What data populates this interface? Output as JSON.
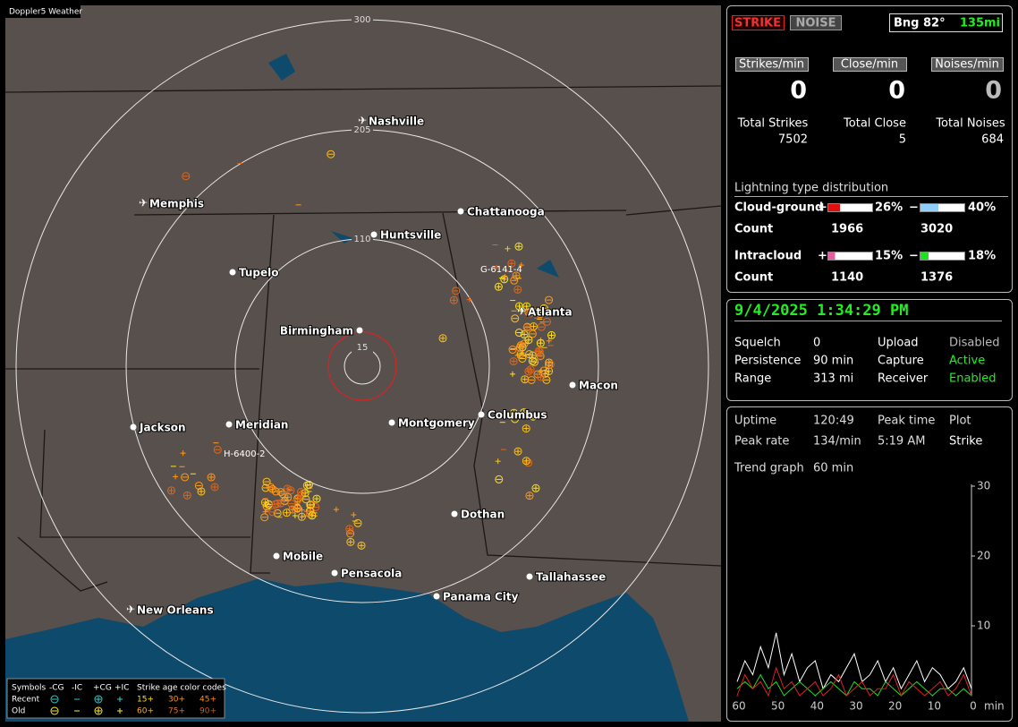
{
  "map": {
    "title": "Doppler5 Weather",
    "range_rings": [
      "300",
      "205",
      "110",
      "15"
    ],
    "cities": [
      "Nashville",
      "Memphis",
      "Chattanooga",
      "Huntsville",
      "Tupelo",
      "Atlanta",
      "Birmingham",
      "Macon",
      "Jackson",
      "Meridian",
      "Montgomery",
      "Columbus",
      "Dothan",
      "Mobile",
      "Pensacola",
      "Tallahassee",
      "Panama City",
      "New Orleans"
    ],
    "sensor_labels": [
      "G-6141-4",
      "H-6400-2"
    ],
    "legend": {
      "symbols_title": "Symbols",
      "symbols": [
        "-CG",
        "-IC",
        "+CG",
        "+IC"
      ],
      "age_title": "Strike age color codes",
      "rows": [
        "Recent",
        "Old"
      ],
      "recent_ages": [
        "15+",
        "30+",
        "45+"
      ],
      "old_ages": [
        "60+",
        "75+",
        "90+"
      ]
    }
  },
  "panel": {
    "buttons": [
      "STRIKE",
      "NOISE"
    ],
    "bearing": "Bng 82°",
    "distance": "135mi",
    "rates": [
      {
        "label": "Strikes/min",
        "value": 0
      },
      {
        "label": "Close/min",
        "value": 0
      },
      {
        "label": "Noises/min",
        "value": 0
      }
    ],
    "totals": [
      {
        "label": "Total Strikes",
        "value": 7502
      },
      {
        "label": "Total Close",
        "value": 5
      },
      {
        "label": "Total Noises",
        "value": 684
      }
    ],
    "distribution": {
      "title": "Lightning type distribution",
      "rows": [
        {
          "label": "Cloud-ground",
          "plus": "+",
          "plus_pct": {
            "value": 26,
            "label": "26%"
          },
          "minus": "−",
          "minus_pct": {
            "value": 40,
            "label": "40%"
          },
          "count_label": "Count",
          "plus_count": 1966,
          "minus_count": 3020
        },
        {
          "label": "Intracloud",
          "plus": "+",
          "plus_pct": {
            "value": 15,
            "label": "15%"
          },
          "minus": "−",
          "minus_pct": {
            "value": 18,
            "label": "18%"
          },
          "count_label": "Count",
          "plus_count": 1140,
          "minus_count": 1376
        }
      ]
    }
  },
  "status": {
    "datetime": "9/4/2025 1:34:29 PM",
    "rows": [
      [
        "Squelch",
        "0",
        "Upload",
        "Disabled"
      ],
      [
        "Persistence",
        "90 min",
        "Capture",
        "Active"
      ],
      [
        "Range",
        "313 mi",
        "Receiver",
        "Enabled"
      ]
    ]
  },
  "stats": {
    "rows": [
      [
        "Uptime",
        "120:49",
        "Peak time",
        "Plot"
      ],
      [
        "Peak rate",
        "134/min",
        "5:19 AM",
        "Strike"
      ],
      [
        "Trend graph",
        "60 min"
      ]
    ]
  },
  "trend": {
    "type": "line",
    "xlim": [
      60,
      0
    ],
    "xticks": [
      60,
      50,
      40,
      30,
      20,
      10,
      0
    ],
    "x_unit": "min",
    "ylim": [
      0,
      30
    ],
    "yticks": [
      10,
      20,
      30
    ],
    "series": [
      {
        "color": "#ffffff",
        "values": [
          2,
          5,
          3,
          7,
          4,
          9,
          3,
          6,
          2,
          4,
          5,
          1,
          3,
          2,
          4,
          6,
          2,
          3,
          5,
          2,
          4,
          1,
          3,
          5,
          2,
          4,
          3,
          1,
          2,
          4,
          1
        ]
      },
      {
        "color": "#22dd22",
        "values": [
          1,
          2,
          1,
          3,
          1,
          2,
          0,
          1,
          2,
          1,
          0,
          1,
          2,
          1,
          0,
          2,
          1,
          1,
          0,
          2,
          1,
          0,
          1,
          2,
          1,
          0,
          1,
          1,
          0,
          1,
          0
        ]
      },
      {
        "color": "#e02020",
        "values": [
          0,
          3,
          1,
          2,
          0,
          4,
          1,
          2,
          0,
          1,
          2,
          0,
          1,
          3,
          0,
          1,
          2,
          0,
          1,
          1,
          3,
          0,
          2,
          1,
          0,
          1,
          2,
          0,
          1,
          3,
          0
        ]
      }
    ]
  }
}
